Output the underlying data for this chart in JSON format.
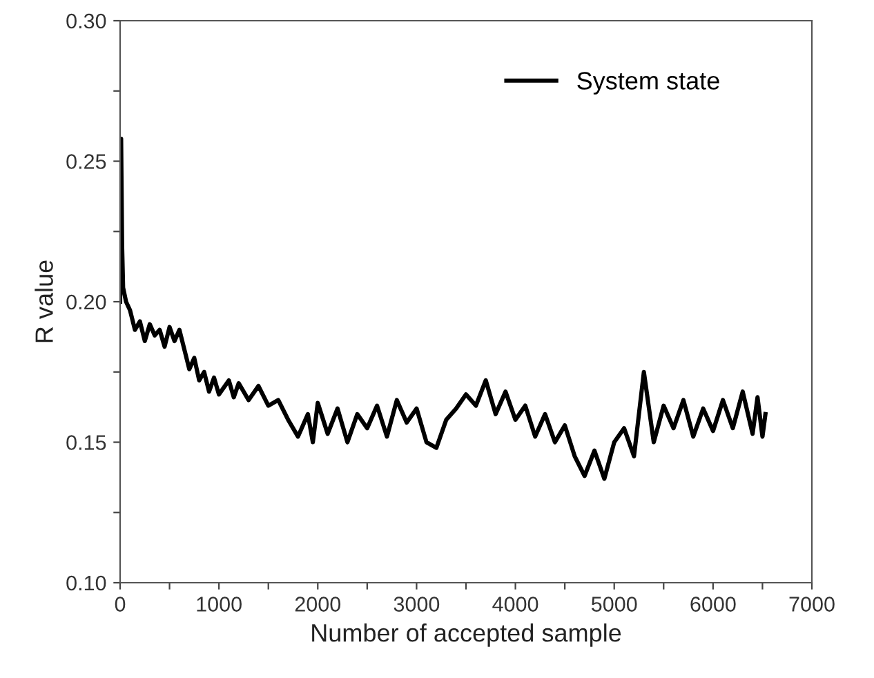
{
  "chart_data": {
    "type": "line",
    "xlabel": "Number of accepted sample",
    "ylabel": "R value",
    "xlim": [
      0,
      7000
    ],
    "ylim": [
      0.1,
      0.3
    ],
    "xticks": [
      0,
      {
        "value": 500,
        "label": null
      },
      1000,
      {
        "value": 1500,
        "label": null
      },
      2000,
      {
        "value": 2500,
        "label": null
      },
      3000,
      {
        "value": 3500,
        "label": null
      },
      4000,
      {
        "value": 4500,
        "label": null
      },
      5000,
      {
        "value": 5500,
        "label": null
      },
      6000,
      {
        "value": 6500,
        "label": null
      },
      7000
    ],
    "yticks": [
      {
        "value": 0.1,
        "label": "0.10"
      },
      {
        "value": 0.125,
        "label": null
      },
      {
        "value": 0.15,
        "label": "0.15"
      },
      {
        "value": 0.175,
        "label": null
      },
      {
        "value": 0.2,
        "label": "0.20"
      },
      {
        "value": 0.225,
        "label": null
      },
      {
        "value": 0.25,
        "label": "0.25"
      },
      {
        "value": 0.275,
        "label": null
      },
      {
        "value": 0.3,
        "label": "0.30"
      }
    ],
    "grid": false,
    "legend": "top right",
    "marker": "none",
    "line_style": "solid",
    "series": [
      {
        "name": "System state",
        "color": "#000000",
        "x": [
          0,
          10,
          20,
          30,
          60,
          100,
          150,
          200,
          250,
          300,
          350,
          400,
          450,
          500,
          550,
          600,
          650,
          700,
          750,
          800,
          850,
          900,
          950,
          1000,
          1100,
          1150,
          1200,
          1300,
          1400,
          1500,
          1600,
          1700,
          1800,
          1900,
          1950,
          2000,
          2100,
          2200,
          2300,
          2400,
          2500,
          2600,
          2700,
          2800,
          2900,
          3000,
          3100,
          3200,
          3300,
          3400,
          3500,
          3600,
          3700,
          3800,
          3900,
          4000,
          4100,
          4200,
          4300,
          4400,
          4500,
          4600,
          4700,
          4800,
          4900,
          5000,
          5100,
          5200,
          5300,
          5400,
          5500,
          5600,
          5700,
          5800,
          5900,
          6000,
          6100,
          6200,
          6300,
          6400,
          6450,
          6500,
          6530
        ],
        "values": [
          0.2,
          0.258,
          0.22,
          0.205,
          0.2,
          0.197,
          0.19,
          0.193,
          0.186,
          0.192,
          0.188,
          0.19,
          0.184,
          0.191,
          0.186,
          0.19,
          0.183,
          0.176,
          0.18,
          0.172,
          0.175,
          0.168,
          0.173,
          0.167,
          0.172,
          0.166,
          0.171,
          0.165,
          0.17,
          0.163,
          0.165,
          0.158,
          0.152,
          0.16,
          0.15,
          0.164,
          0.153,
          0.162,
          0.15,
          0.16,
          0.155,
          0.163,
          0.152,
          0.165,
          0.157,
          0.162,
          0.15,
          0.148,
          0.158,
          0.162,
          0.167,
          0.163,
          0.172,
          0.16,
          0.168,
          0.158,
          0.163,
          0.152,
          0.16,
          0.15,
          0.156,
          0.145,
          0.138,
          0.147,
          0.137,
          0.15,
          0.155,
          0.145,
          0.175,
          0.15,
          0.163,
          0.155,
          0.165,
          0.152,
          0.162,
          0.154,
          0.165,
          0.155,
          0.168,
          0.153,
          0.166,
          0.152,
          0.16
        ]
      }
    ]
  }
}
